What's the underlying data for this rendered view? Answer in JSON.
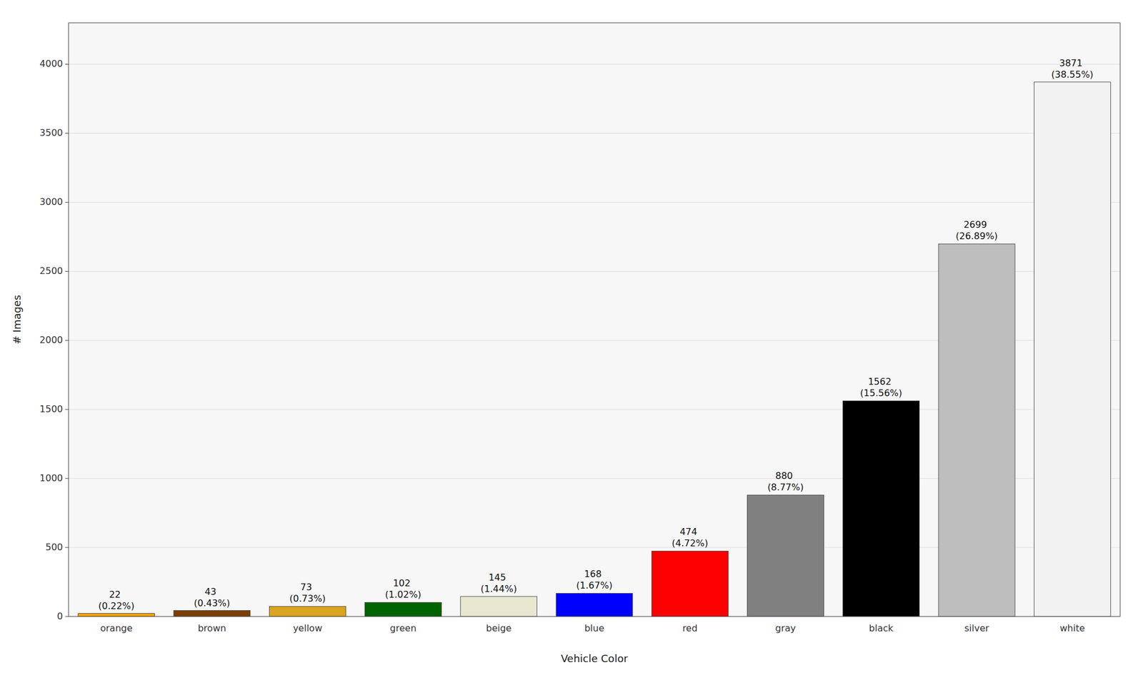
{
  "chart_data": {
    "type": "bar",
    "categories": [
      "orange",
      "brown",
      "yellow",
      "green",
      "beige",
      "blue",
      "red",
      "gray",
      "black",
      "silver",
      "white"
    ],
    "values": [
      22,
      43,
      73,
      102,
      145,
      168,
      474,
      880,
      1562,
      2699,
      3871
    ],
    "value_labels": [
      "22\n(0.22%)",
      "43\n(0.43%)",
      "73\n(0.73%)",
      "102\n(1.02%)",
      "145\n(1.44%)",
      "168\n(1.67%)",
      "474\n(4.72%)",
      "880\n(8.77%)",
      "1562\n(15.56%)",
      "2699\n(26.89%)",
      "3871\n(38.55%)"
    ],
    "colors": [
      "#FFA500",
      "#7B3F00",
      "#DAA520",
      "#006400",
      "#E8E8D0",
      "#0000FF",
      "#FF0000",
      "#808080",
      "#000000",
      "#BEBEBE",
      "#F2F2F2"
    ],
    "xlabel": "Vehicle Color",
    "ylabel": "# Images",
    "ylim": [
      0,
      4300
    ],
    "yticks": [
      0,
      500,
      1000,
      1500,
      2000,
      2500,
      3000,
      3500,
      4000
    ],
    "grid": true,
    "data_labels": true
  }
}
